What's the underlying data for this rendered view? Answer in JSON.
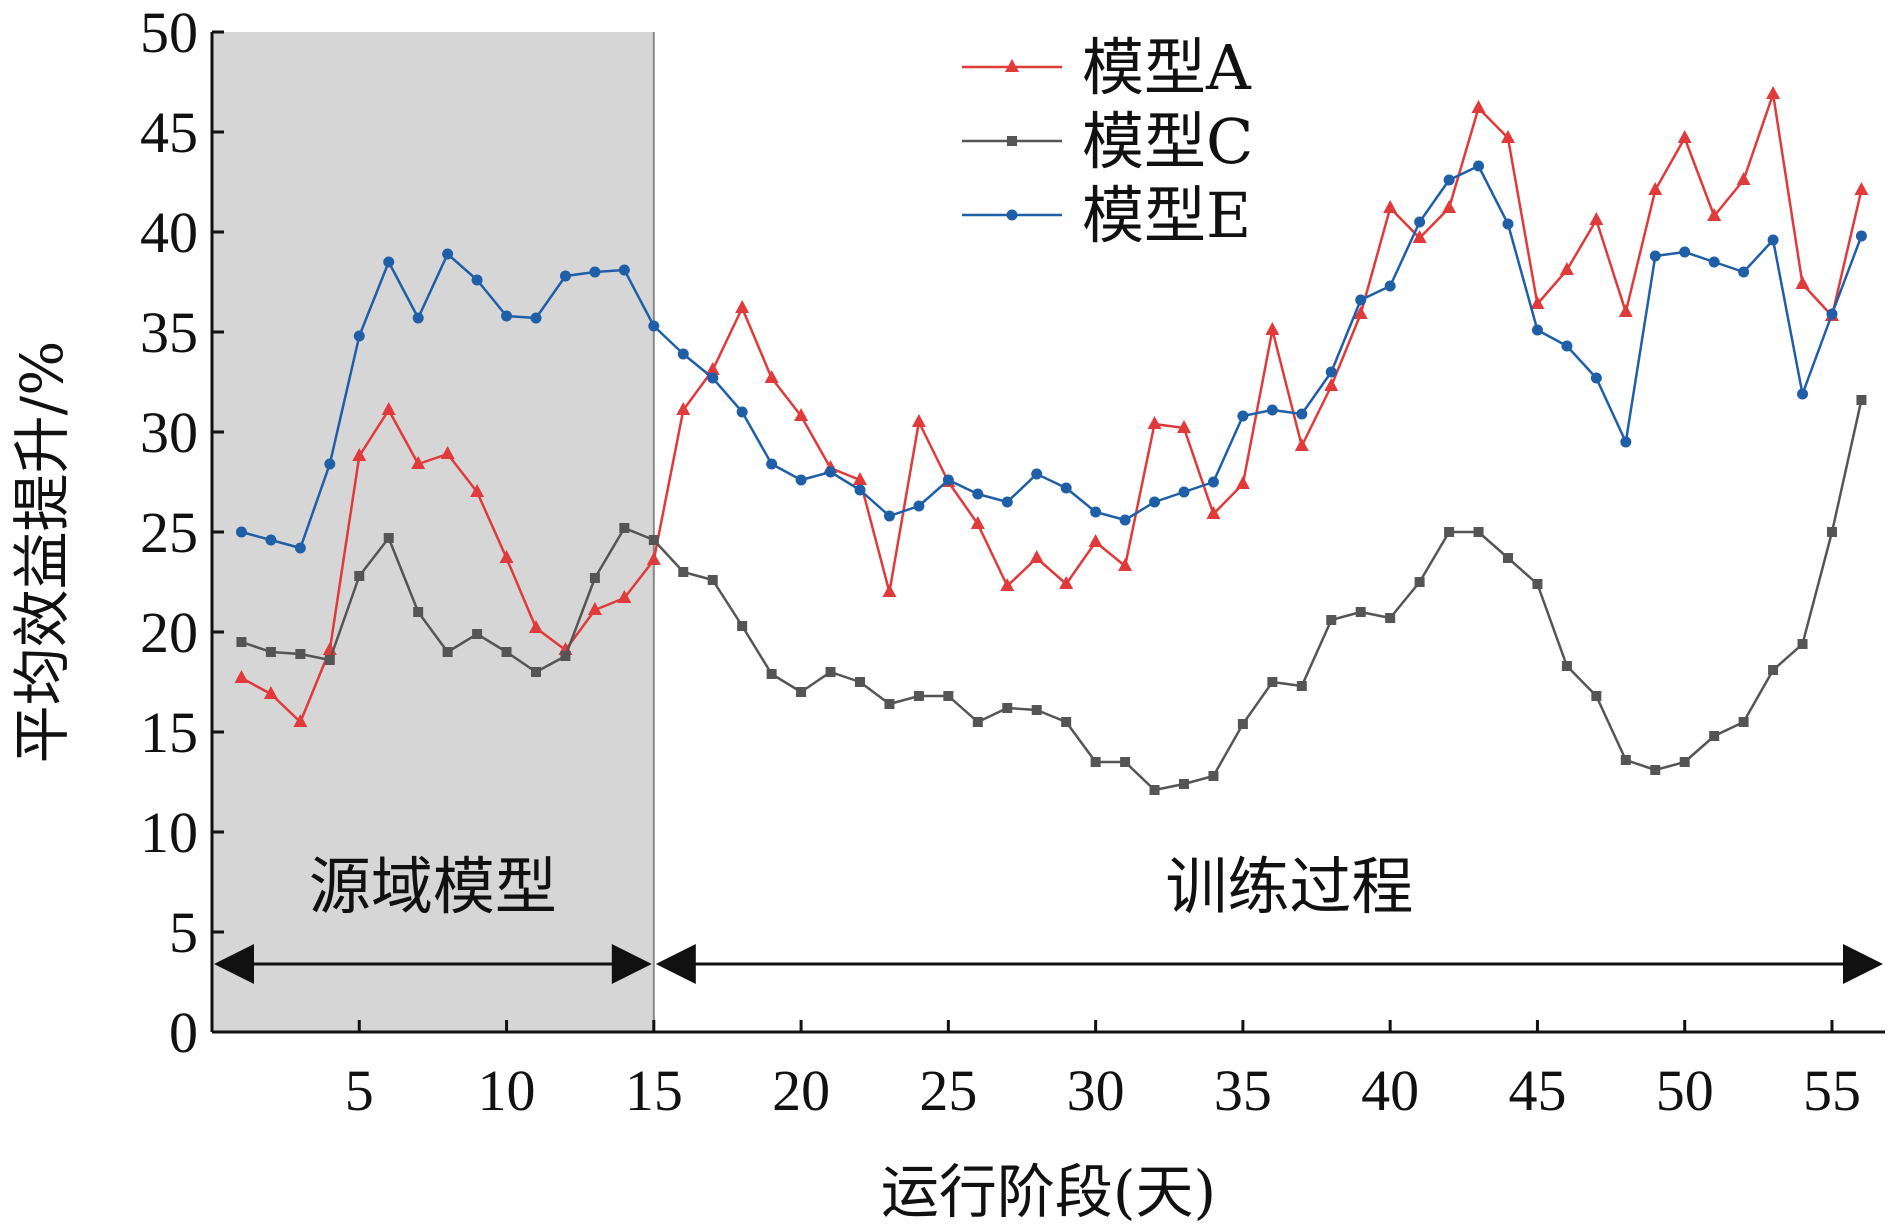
{
  "chart_data": {
    "type": "line",
    "xlabel": "运行阶段(天)",
    "ylabel": "平均效益提升/%",
    "xlim": [
      0,
      56.8
    ],
    "ylim": [
      0,
      50
    ],
    "xticks": [
      5,
      10,
      15,
      20,
      25,
      30,
      35,
      40,
      45,
      50,
      55
    ],
    "yticks": [
      0,
      5,
      10,
      15,
      20,
      25,
      30,
      35,
      40,
      45,
      50
    ],
    "grid": false,
    "legend_position": "top-center",
    "phases": [
      {
        "label": "源域模型",
        "x_range": [
          0,
          15
        ],
        "shaded": true
      },
      {
        "label": "训练过程",
        "x_range": [
          15,
          56.8
        ],
        "shaded": false
      }
    ],
    "x": [
      1,
      2,
      3,
      4,
      5,
      6,
      7,
      8,
      9,
      10,
      11,
      12,
      13,
      14,
      15,
      16,
      17,
      18,
      19,
      20,
      21,
      22,
      23,
      24,
      25,
      26,
      27,
      28,
      29,
      30,
      31,
      32,
      33,
      34,
      35,
      36,
      37,
      38,
      39,
      40,
      41,
      42,
      43,
      44,
      45,
      46,
      47,
      48,
      49,
      50,
      51,
      52,
      53,
      54,
      55,
      56
    ],
    "series": [
      {
        "name": "模型A",
        "color": "#e03a3a",
        "marker": "triangle",
        "values": [
          17.7,
          16.9,
          15.5,
          19.1,
          28.8,
          31.1,
          28.4,
          28.9,
          27.0,
          23.7,
          20.2,
          19.1,
          21.1,
          21.7,
          23.6,
          31.1,
          33.1,
          36.2,
          32.7,
          30.8,
          28.2,
          27.6,
          22.0,
          30.5,
          27.5,
          25.4,
          22.3,
          23.7,
          22.4,
          24.5,
          23.3,
          30.4,
          30.2,
          25.9,
          27.4,
          35.1,
          29.3,
          32.3,
          35.9,
          41.2,
          39.7,
          41.2,
          46.2,
          44.7,
          36.4,
          38.1,
          40.6,
          36.0,
          42.1,
          44.7,
          40.8,
          42.6,
          46.9,
          37.4,
          35.8,
          42.1
        ]
      },
      {
        "name": "模型C",
        "color": "#555555",
        "marker": "square",
        "values": [
          19.5,
          19.0,
          18.9,
          18.6,
          22.8,
          24.7,
          21.0,
          19.0,
          19.9,
          19.0,
          18.0,
          18.8,
          22.7,
          25.2,
          24.6,
          23.0,
          22.6,
          20.3,
          17.9,
          17.0,
          18.0,
          17.5,
          16.4,
          16.8,
          16.8,
          15.5,
          16.2,
          16.1,
          15.5,
          13.5,
          13.5,
          12.1,
          12.4,
          12.8,
          15.4,
          17.5,
          17.3,
          20.6,
          21.0,
          20.7,
          22.5,
          25.0,
          25.0,
          23.7,
          22.4,
          18.3,
          16.8,
          13.6,
          13.1,
          13.5,
          14.8,
          15.5,
          18.1,
          19.4,
          25.0,
          31.6
        ]
      },
      {
        "name": "模型E",
        "color": "#1f5fa8",
        "marker": "diamond",
        "values": [
          25.0,
          24.6,
          24.2,
          28.4,
          34.8,
          38.5,
          35.7,
          38.9,
          37.6,
          35.8,
          35.7,
          37.8,
          38.0,
          38.1,
          35.3,
          33.9,
          32.7,
          31.0,
          28.4,
          27.6,
          28.0,
          27.1,
          25.8,
          26.3,
          27.6,
          26.9,
          26.5,
          27.9,
          27.2,
          26.0,
          25.6,
          26.5,
          27.0,
          27.5,
          30.8,
          31.1,
          30.9,
          33.0,
          36.6,
          37.3,
          40.5,
          42.6,
          43.3,
          40.4,
          35.1,
          34.3,
          32.7,
          29.5,
          38.8,
          39.0,
          38.5,
          38.0,
          39.6,
          31.9,
          35.9,
          39.8
        ]
      }
    ]
  }
}
